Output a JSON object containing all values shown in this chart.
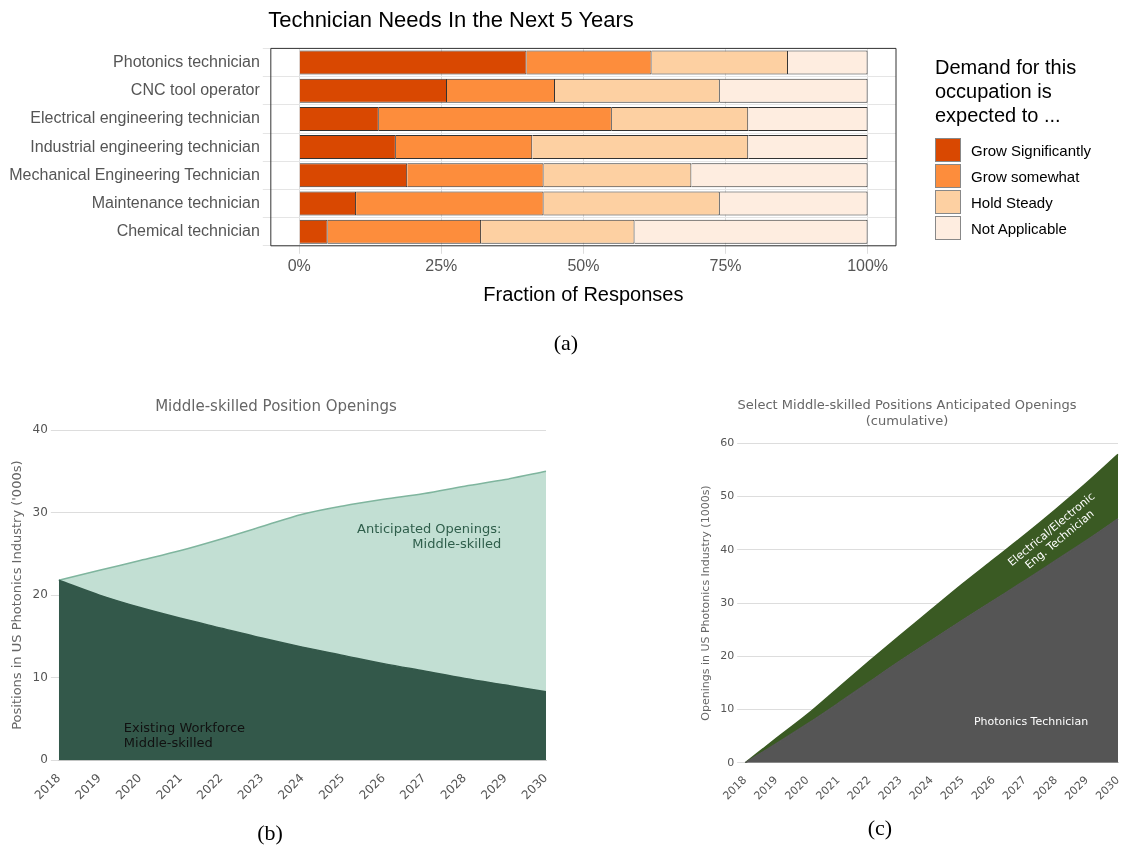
{
  "chart_data": [
    {
      "type": "bar",
      "orientation": "horizontal",
      "stacked": true,
      "title": "Technician Needs In the Next 5 Years",
      "xlabel": "Fraction of Responses",
      "legend_title": "Demand for this occupation is expected to ...",
      "legend": "right",
      "grid": true,
      "annotations": [
        "(a)"
      ],
      "categories": [
        "Photonics technician",
        "CNC tool operator",
        "Electrical engineering technician",
        "Industrial engineering technician",
        "Mechanical Engineering Technician",
        "Maintenance technician",
        "Chemical technician"
      ],
      "xlim": [
        -5,
        105
      ],
      "xticks": [
        {
          "value": 0,
          "label": "0%"
        },
        {
          "value": 25,
          "label": "25%"
        },
        {
          "value": 50,
          "label": "50%"
        },
        {
          "value": 75,
          "label": "75%"
        },
        {
          "value": 100,
          "label": "100%"
        }
      ],
      "series": [
        {
          "name": "Grow Significantly",
          "color": "#d94801",
          "values": [
            40,
            26,
            14,
            17,
            19,
            10,
            5
          ]
        },
        {
          "name": "Grow somewhat",
          "color": "#fd8d3c",
          "values": [
            22,
            19,
            41,
            24,
            24,
            33,
            27
          ]
        },
        {
          "name": "Hold Steady",
          "color": "#fdd0a2",
          "values": [
            24,
            29,
            24,
            38,
            26,
            31,
            27
          ]
        },
        {
          "name": "Not Applicable",
          "color": "#feede0",
          "values": [
            14,
            26,
            21,
            21,
            31,
            26,
            41
          ]
        }
      ]
    },
    {
      "type": "area",
      "stacked": true,
      "title": "Middle-skilled Position Openings",
      "ylabel": "Positions in US Photonics Industry ('000s)",
      "grid": "y",
      "annotations": [
        "(b)"
      ],
      "categories": [
        "2018",
        "2019",
        "2020",
        "2021",
        "2022",
        "2023",
        "2024",
        "2025",
        "2026",
        "2027",
        "2028",
        "2029",
        "2030"
      ],
      "ylim": [
        0,
        40
      ],
      "yticks": [
        0,
        10,
        20,
        30,
        40
      ],
      "series": [
        {
          "name": "Existing Workforce Middle-skilled",
          "color": "#33584a",
          "values": [
            21.8,
            20,
            18.5,
            17.2,
            16,
            14.8,
            13.7,
            12.7,
            11.7,
            10.8,
            9.9,
            9.1,
            8.3
          ]
        },
        {
          "name": "Anticipated Openings: Middle-skilled",
          "color": "#c2dfd3",
          "values": [
            0,
            3,
            5.7,
            8.2,
            10.8,
            13.5,
            16.1,
            18.1,
            19.9,
            21.5,
            23.3,
            24.9,
            26.7
          ]
        }
      ]
    },
    {
      "type": "area",
      "stacked": true,
      "title": "Select Middle-skilled Positions Anticipated Openings (cumulative)",
      "ylabel": "Openings in US Photonics Industry (1000s)",
      "grid": "y",
      "annotations": [
        "(c)"
      ],
      "categories": [
        "2018",
        "2019",
        "2020",
        "2021",
        "2022",
        "2023",
        "2024",
        "2025",
        "2026",
        "2027",
        "2028",
        "2029",
        "2030"
      ],
      "ylim": [
        0,
        60
      ],
      "yticks": [
        0,
        10,
        20,
        30,
        40,
        50,
        60
      ],
      "series": [
        {
          "name": "Photonics Technician",
          "color": "#555555",
          "values": [
            0,
            3.6,
            7.3,
            11.2,
            15.2,
            19.2,
            23,
            26.8,
            30.5,
            34.2,
            38,
            41.8,
            45.8
          ]
        },
        {
          "name": "Electrical/Electronic Eng. Technician",
          "color": "#3a5a23",
          "values": [
            0,
            1,
            1.8,
            2.9,
            3.9,
            4.8,
            5.8,
            6.8,
            7.7,
            8.6,
            9.6,
            10.8,
            12.1
          ]
        }
      ]
    }
  ]
}
